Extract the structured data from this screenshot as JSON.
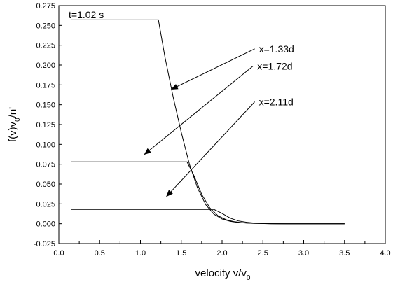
{
  "chart_data": {
    "type": "line",
    "annotation_time": "t=1.02 s",
    "xlabel_main": "velocity v/v",
    "xlabel_sub": "0",
    "ylabel_parts": [
      "f(v)v",
      "0",
      "/n'"
    ],
    "xlim": [
      0.0,
      4.0
    ],
    "ylim": [
      -0.025,
      0.275
    ],
    "x_ticks": [
      0.0,
      0.5,
      1.0,
      1.5,
      2.0,
      2.5,
      3.0,
      3.5,
      4.0
    ],
    "x_tick_labels": [
      "0.0",
      "0.5",
      "1.0",
      "1.5",
      "2.0",
      "2.5",
      "3.0",
      "3.5",
      "4.0"
    ],
    "y_ticks": [
      -0.025,
      0.0,
      0.025,
      0.05,
      0.075,
      0.1,
      0.125,
      0.15,
      0.175,
      0.2,
      0.225,
      0.25,
      0.275
    ],
    "y_tick_labels": [
      "-0.025",
      "0.000",
      "0.025",
      "0.050",
      "0.075",
      "0.100",
      "0.125",
      "0.150",
      "0.175",
      "0.200",
      "0.225",
      "0.250",
      "0.275"
    ],
    "series": [
      {
        "name": "x=1.33d",
        "x": [
          0.15,
          1.22,
          1.3,
          1.4,
          1.5,
          1.6,
          1.7,
          1.8,
          1.9,
          2.0,
          2.1,
          2.2,
          2.3,
          2.4,
          2.5,
          2.6,
          2.8,
          3.0,
          3.5
        ],
        "y": [
          0.257,
          0.257,
          0.21,
          0.16,
          0.115,
          0.075,
          0.045,
          0.024,
          0.012,
          0.006,
          0.003,
          0.0015,
          0.0008,
          0.0004,
          0.0002,
          0.0001,
          0.0,
          0.0,
          0.0
        ]
      },
      {
        "name": "x=1.72d",
        "x": [
          0.15,
          1.57,
          1.65,
          1.75,
          1.85,
          1.95,
          2.05,
          2.15,
          2.25,
          2.35,
          2.45,
          2.55,
          2.7,
          3.0,
          3.5
        ],
        "y": [
          0.078,
          0.078,
          0.062,
          0.037,
          0.02,
          0.01,
          0.005,
          0.0025,
          0.0012,
          0.0006,
          0.0003,
          0.0001,
          0.0,
          0.0,
          0.0
        ]
      },
      {
        "name": "x=2.11d",
        "x": [
          0.15,
          1.9,
          2.0,
          2.1,
          2.2,
          2.3,
          2.4,
          2.5,
          2.6,
          2.8,
          3.0,
          3.5
        ],
        "y": [
          0.018,
          0.018,
          0.013,
          0.007,
          0.0035,
          0.0018,
          0.0008,
          0.0003,
          0.0001,
          0.0,
          0.0,
          0.0
        ]
      }
    ],
    "arrows": [
      {
        "label": "x=1.33d",
        "from": [
          2.4,
          0.2205
        ],
        "to": [
          1.38,
          0.1695
        ]
      },
      {
        "label": "x=1.72d",
        "from": [
          2.38,
          0.1988
        ],
        "to": [
          1.05,
          0.0875
        ]
      },
      {
        "label": "x=2.11d",
        "from": [
          2.4,
          0.1537
        ],
        "to": [
          1.32,
          0.0345
        ]
      }
    ]
  }
}
